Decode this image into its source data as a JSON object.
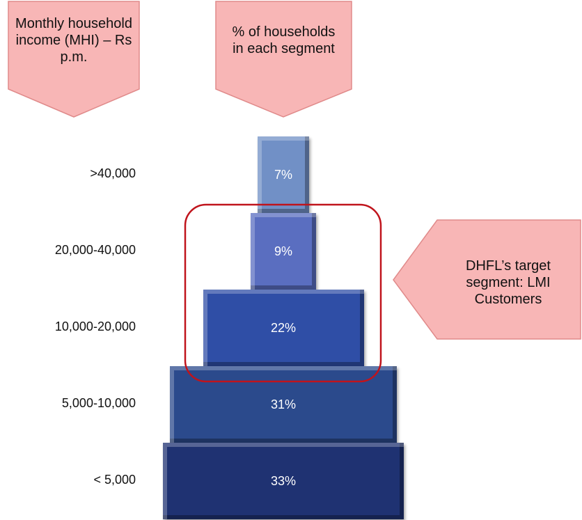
{
  "chart_data": {
    "type": "pyramid",
    "header_left": "Monthly household income (MHI) – Rs p.m.",
    "header_right": "% of households in each segment",
    "callout": "DHFL’s target segment: LMI Customers",
    "categories": [
      ">40,000",
      "20,000-40,000",
      "10,000-20,000",
      "5,000-10,000",
      "< 5,000"
    ],
    "values": [
      7,
      9,
      22,
      31,
      33
    ],
    "value_labels": [
      "7%",
      "9%",
      "22%",
      "31%",
      "33%"
    ],
    "colors": [
      "#7190c6",
      "#5a6ec0",
      "#2f4ea6",
      "#2b4a8c",
      "#1f3272"
    ]
  }
}
